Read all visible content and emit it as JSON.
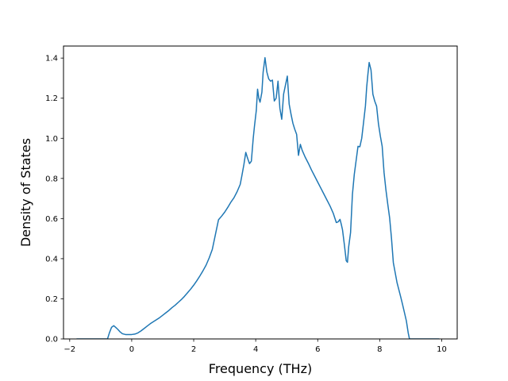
{
  "chart_data": {
    "type": "line",
    "title": "",
    "xlabel": "Frequency (THz)",
    "ylabel": "Density of States",
    "xlim": [
      -2.2,
      10.5
    ],
    "ylim": [
      0.0,
      1.46
    ],
    "x_ticks": [
      -2,
      0,
      2,
      4,
      6,
      8,
      10
    ],
    "x_tick_labels": [
      "−2",
      "0",
      "2",
      "4",
      "6",
      "8",
      "10"
    ],
    "y_ticks": [
      0.0,
      0.2,
      0.4,
      0.6,
      0.8,
      1.0,
      1.2,
      1.4
    ],
    "y_tick_labels": [
      "0.0",
      "0.2",
      "0.4",
      "0.6",
      "0.8",
      "1.0",
      "1.2",
      "1.4"
    ],
    "grid": false,
    "legend": "none",
    "series": [
      {
        "color": "#1f77b4",
        "x": [
          -1.78,
          -1.4,
          -1.0,
          -0.78,
          -0.72,
          -0.65,
          -0.58,
          -0.52,
          -0.45,
          -0.38,
          -0.3,
          -0.2,
          -0.1,
          0.0,
          0.1,
          0.2,
          0.3,
          0.4,
          0.5,
          0.6,
          0.7,
          0.8,
          0.9,
          1.0,
          1.1,
          1.2,
          1.3,
          1.4,
          1.5,
          1.6,
          1.7,
          1.8,
          1.9,
          2.0,
          2.1,
          2.2,
          2.3,
          2.4,
          2.5,
          2.6,
          2.7,
          2.8,
          2.9,
          3.0,
          3.1,
          3.2,
          3.3,
          3.4,
          3.5,
          3.55,
          3.62,
          3.68,
          3.74,
          3.8,
          3.86,
          3.92,
          3.96,
          4.02,
          4.06,
          4.1,
          4.14,
          4.2,
          4.24,
          4.3,
          4.36,
          4.42,
          4.48,
          4.54,
          4.6,
          4.66,
          4.72,
          4.78,
          4.84,
          4.9,
          4.96,
          5.02,
          5.08,
          5.14,
          5.2,
          5.26,
          5.32,
          5.38,
          5.44,
          5.5,
          5.6,
          5.7,
          5.8,
          5.9,
          6.0,
          6.1,
          6.2,
          6.3,
          6.4,
          6.5,
          6.6,
          6.66,
          6.72,
          6.76,
          6.8,
          6.86,
          6.92,
          6.96,
          7.0,
          7.06,
          7.12,
          7.18,
          7.24,
          7.3,
          7.36,
          7.42,
          7.48,
          7.54,
          7.58,
          7.62,
          7.66,
          7.72,
          7.78,
          7.84,
          7.9,
          7.96,
          8.02,
          8.08,
          8.14,
          8.2,
          8.26,
          8.32,
          8.38,
          8.44,
          8.5,
          8.56,
          8.62,
          8.68,
          8.74,
          8.8,
          8.86,
          8.92,
          8.96,
          9.0,
          9.2,
          9.6,
          9.92
        ],
        "y": [
          0.0,
          0.0,
          0.0,
          0.0,
          0.03,
          0.058,
          0.066,
          0.058,
          0.048,
          0.036,
          0.026,
          0.022,
          0.022,
          0.022,
          0.024,
          0.03,
          0.04,
          0.052,
          0.064,
          0.076,
          0.086,
          0.096,
          0.106,
          0.118,
          0.13,
          0.142,
          0.156,
          0.168,
          0.182,
          0.196,
          0.212,
          0.23,
          0.248,
          0.268,
          0.29,
          0.314,
          0.34,
          0.368,
          0.404,
          0.446,
          0.52,
          0.594,
          0.612,
          0.632,
          0.656,
          0.682,
          0.704,
          0.734,
          0.77,
          0.81,
          0.87,
          0.93,
          0.9,
          0.874,
          0.886,
          1.0,
          1.06,
          1.14,
          1.245,
          1.2,
          1.18,
          1.23,
          1.33,
          1.402,
          1.33,
          1.296,
          1.285,
          1.29,
          1.186,
          1.2,
          1.285,
          1.15,
          1.095,
          1.22,
          1.265,
          1.31,
          1.17,
          1.12,
          1.075,
          1.045,
          1.02,
          0.915,
          0.97,
          0.94,
          0.905,
          0.875,
          0.842,
          0.812,
          0.782,
          0.752,
          0.722,
          0.692,
          0.662,
          0.627,
          0.58,
          0.584,
          0.596,
          0.572,
          0.544,
          0.47,
          0.39,
          0.382,
          0.46,
          0.53,
          0.72,
          0.82,
          0.89,
          0.96,
          0.958,
          1.0,
          1.08,
          1.162,
          1.255,
          1.32,
          1.378,
          1.34,
          1.22,
          1.185,
          1.16,
          1.072,
          1.012,
          0.96,
          0.83,
          0.744,
          0.672,
          0.604,
          0.502,
          0.38,
          0.33,
          0.28,
          0.244,
          0.208,
          0.17,
          0.13,
          0.09,
          0.03,
          0.0,
          0.0,
          0.0,
          0.0,
          0.0
        ]
      }
    ]
  }
}
